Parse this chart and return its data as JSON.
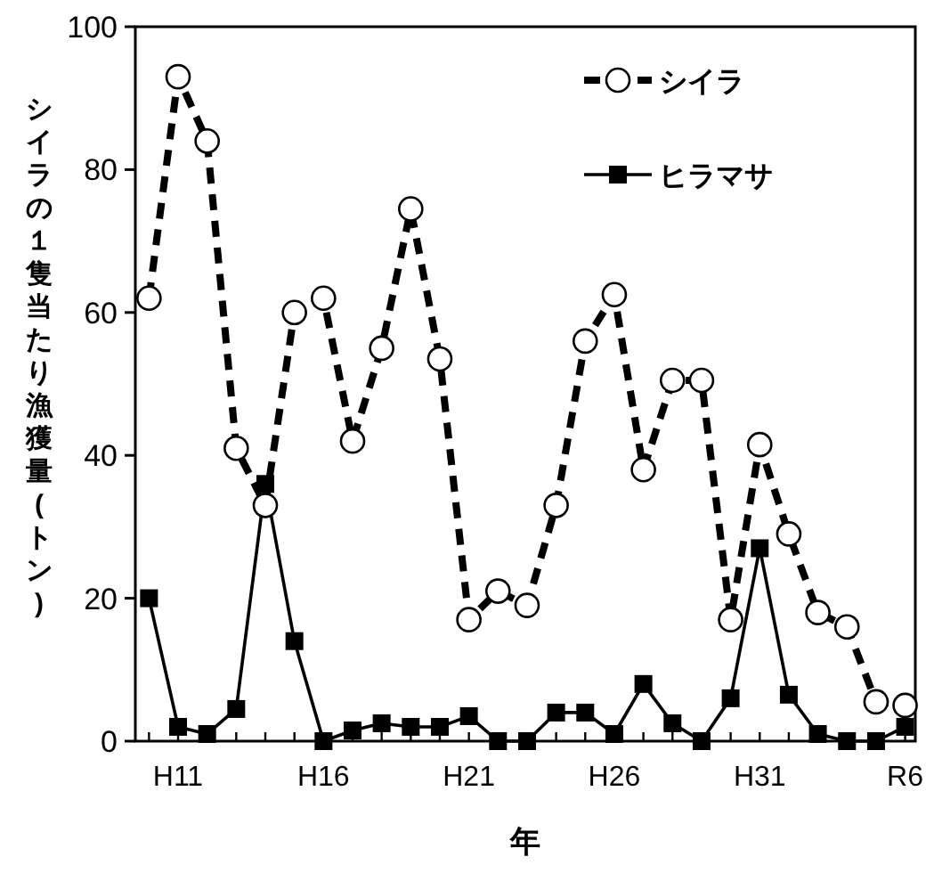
{
  "chart_data": {
    "type": "line",
    "xlabel": "年",
    "ylabel": "シイラの１隻当たり漁獲量(トン)",
    "categories": [
      null,
      "H11",
      null,
      null,
      null,
      null,
      "H16",
      null,
      null,
      null,
      null,
      "H21",
      null,
      null,
      null,
      null,
      "H26",
      null,
      null,
      null,
      null,
      "H31",
      null,
      null,
      null,
      null,
      "R6"
    ],
    "series": [
      {
        "name": "シイラ",
        "color": "#000000",
        "marker": "circle",
        "line_style": "dashed",
        "values": [
          62,
          93,
          84,
          41,
          33,
          60,
          62,
          42,
          55,
          74.5,
          53.5,
          17,
          21,
          19,
          33,
          56,
          62.5,
          38,
          50.5,
          50.5,
          17,
          41.5,
          29,
          18,
          16,
          5.5,
          5
        ]
      },
      {
        "name": "ヒラマサ",
        "color": "#000000",
        "marker": "square",
        "line_style": "solid",
        "values": [
          20,
          2,
          1,
          4.5,
          36,
          14,
          0,
          1.5,
          2.5,
          2,
          2,
          3.5,
          0,
          0,
          4,
          4,
          1,
          8,
          2.5,
          0,
          6,
          27,
          6.5,
          1,
          0,
          0,
          2
        ]
      }
    ],
    "ylim": [
      0,
      100
    ],
    "yticks": [
      0,
      20,
      40,
      60,
      80,
      100
    ],
    "grid": false,
    "legend": "top right"
  }
}
